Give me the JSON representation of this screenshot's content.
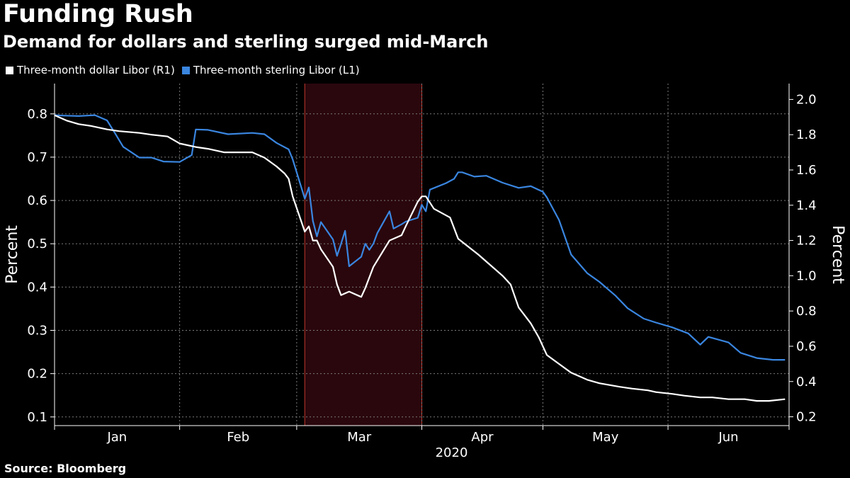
{
  "header": {
    "title": "Funding Rush",
    "subtitle": "Demand for dollars and sterling surged mid-March"
  },
  "legend": {
    "items": [
      {
        "label": "Three-month dollar Libor  (R1)",
        "color": "#ffffff"
      },
      {
        "label": "Three-month sterling Libor (L1)",
        "color": "#3a86e0"
      }
    ]
  },
  "source": "Source: Bloomberg",
  "colors": {
    "background": "#000000",
    "dollar_line": "#ffffff",
    "sterling_line": "#3a86e0",
    "highlight_fill": "#2a070d",
    "highlight_edge": "#c0392b",
    "grid": "#7a7a7a"
  },
  "chart_data": {
    "type": "line",
    "x_type": "date",
    "year_label": "2020",
    "month_labels": [
      "Jan",
      "Feb",
      "Mar",
      "Apr",
      "May",
      "Jun"
    ],
    "xlim": [
      "2019-12-31",
      "2020-06-30"
    ],
    "left_axis": {
      "label": "Percent",
      "ticks": [
        "0.1",
        "0.2",
        "0.3",
        "0.4",
        "0.5",
        "0.6",
        "0.7",
        "0.8"
      ],
      "ylim": [
        0.08,
        0.87
      ]
    },
    "right_axis": {
      "label": "Percent",
      "ticks": [
        "0.2",
        "0.4",
        "0.6",
        "0.8",
        "1.0",
        "1.2",
        "1.4",
        "1.6",
        "1.8",
        "2.0"
      ],
      "ylim": [
        0.15,
        2.09
      ]
    },
    "grid": true,
    "highlight": {
      "start": "2020-03-02",
      "end": "2020-03-31"
    },
    "series": [
      {
        "name": "Three-month sterling Libor (L1)",
        "axis": "left",
        "points": [
          [
            "2019-12-31",
            0.797
          ],
          [
            "2020-01-02",
            0.796
          ],
          [
            "2020-01-06",
            0.795
          ],
          [
            "2020-01-10",
            0.797
          ],
          [
            "2020-01-13",
            0.785
          ],
          [
            "2020-01-15",
            0.755
          ],
          [
            "2020-01-17",
            0.724
          ],
          [
            "2020-01-21",
            0.699
          ],
          [
            "2020-01-24",
            0.699
          ],
          [
            "2020-01-27",
            0.69
          ],
          [
            "2020-01-31",
            0.689
          ],
          [
            "2020-02-03",
            0.705
          ],
          [
            "2020-02-04",
            0.764
          ],
          [
            "2020-02-07",
            0.763
          ],
          [
            "2020-02-12",
            0.753
          ],
          [
            "2020-02-18",
            0.756
          ],
          [
            "2020-02-21",
            0.753
          ],
          [
            "2020-02-24",
            0.733
          ],
          [
            "2020-02-27",
            0.718
          ],
          [
            "2020-02-28",
            0.695
          ],
          [
            "2020-03-02",
            0.604
          ],
          [
            "2020-03-03",
            0.63
          ],
          [
            "2020-03-04",
            0.553
          ],
          [
            "2020-03-05",
            0.517
          ],
          [
            "2020-03-06",
            0.55
          ],
          [
            "2020-03-09",
            0.51
          ],
          [
            "2020-03-10",
            0.472
          ],
          [
            "2020-03-11",
            0.5
          ],
          [
            "2020-03-12",
            0.53
          ],
          [
            "2020-03-13",
            0.448
          ],
          [
            "2020-03-16",
            0.47
          ],
          [
            "2020-03-17",
            0.5
          ],
          [
            "2020-03-18",
            0.486
          ],
          [
            "2020-03-19",
            0.5
          ],
          [
            "2020-03-20",
            0.525
          ],
          [
            "2020-03-23",
            0.575
          ],
          [
            "2020-03-24",
            0.535
          ],
          [
            "2020-03-26",
            0.545
          ],
          [
            "2020-03-27",
            0.551
          ],
          [
            "2020-03-30",
            0.56
          ],
          [
            "2020-03-31",
            0.59
          ],
          [
            "2020-04-01",
            0.575
          ],
          [
            "2020-04-02",
            0.625
          ],
          [
            "2020-04-06",
            0.64
          ],
          [
            "2020-04-08",
            0.65
          ],
          [
            "2020-04-09",
            0.665
          ],
          [
            "2020-04-10",
            0.665
          ],
          [
            "2020-04-13",
            0.655
          ],
          [
            "2020-04-16",
            0.657
          ],
          [
            "2020-04-20",
            0.641
          ],
          [
            "2020-04-24",
            0.629
          ],
          [
            "2020-04-27",
            0.633
          ],
          [
            "2020-04-30",
            0.62
          ],
          [
            "2020-05-01",
            0.607
          ],
          [
            "2020-05-04",
            0.555
          ],
          [
            "2020-05-07",
            0.475
          ],
          [
            "2020-05-11",
            0.432
          ],
          [
            "2020-05-14",
            0.412
          ],
          [
            "2020-05-18",
            0.38
          ],
          [
            "2020-05-21",
            0.351
          ],
          [
            "2020-05-25",
            0.327
          ],
          [
            "2020-05-28",
            0.318
          ],
          [
            "2020-06-01",
            0.307
          ],
          [
            "2020-06-05",
            0.293
          ],
          [
            "2020-06-08",
            0.267
          ],
          [
            "2020-06-10",
            0.285
          ],
          [
            "2020-06-15",
            0.272
          ],
          [
            "2020-06-18",
            0.248
          ],
          [
            "2020-06-22",
            0.236
          ],
          [
            "2020-06-25",
            0.233
          ],
          [
            "2020-06-26",
            0.232
          ],
          [
            "2020-06-29",
            0.232
          ]
        ]
      },
      {
        "name": "Three-month dollar Libor  (R1)",
        "axis": "right",
        "points": [
          [
            "2019-12-31",
            1.91
          ],
          [
            "2020-01-03",
            1.88
          ],
          [
            "2020-01-06",
            1.86
          ],
          [
            "2020-01-09",
            1.85
          ],
          [
            "2020-01-13",
            1.83
          ],
          [
            "2020-01-16",
            1.82
          ],
          [
            "2020-01-21",
            1.81
          ],
          [
            "2020-01-24",
            1.8
          ],
          [
            "2020-01-28",
            1.79
          ],
          [
            "2020-01-31",
            1.75
          ],
          [
            "2020-02-04",
            1.73
          ],
          [
            "2020-02-07",
            1.72
          ],
          [
            "2020-02-11",
            1.7
          ],
          [
            "2020-02-14",
            1.7
          ],
          [
            "2020-02-18",
            1.7
          ],
          [
            "2020-02-21",
            1.67
          ],
          [
            "2020-02-24",
            1.62
          ],
          [
            "2020-02-25",
            1.6
          ],
          [
            "2020-02-26",
            1.58
          ],
          [
            "2020-02-27",
            1.55
          ],
          [
            "2020-02-28",
            1.45
          ],
          [
            "2020-03-02",
            1.25
          ],
          [
            "2020-03-03",
            1.28
          ],
          [
            "2020-03-04",
            1.2
          ],
          [
            "2020-03-05",
            1.2
          ],
          [
            "2020-03-06",
            1.15
          ],
          [
            "2020-03-09",
            1.05
          ],
          [
            "2020-03-10",
            0.95
          ],
          [
            "2020-03-11",
            0.89
          ],
          [
            "2020-03-13",
            0.91
          ],
          [
            "2020-03-16",
            0.88
          ],
          [
            "2020-03-17",
            0.93
          ],
          [
            "2020-03-19",
            1.05
          ],
          [
            "2020-03-23",
            1.2
          ],
          [
            "2020-03-26",
            1.23
          ],
          [
            "2020-03-27",
            1.28
          ],
          [
            "2020-03-30",
            1.42
          ],
          [
            "2020-03-31",
            1.45
          ],
          [
            "2020-04-01",
            1.45
          ],
          [
            "2020-04-03",
            1.38
          ],
          [
            "2020-04-07",
            1.33
          ],
          [
            "2020-04-09",
            1.21
          ],
          [
            "2020-04-14",
            1.12
          ],
          [
            "2020-04-16",
            1.08
          ],
          [
            "2020-04-20",
            1.0
          ],
          [
            "2020-04-22",
            0.95
          ],
          [
            "2020-04-24",
            0.82
          ],
          [
            "2020-04-27",
            0.73
          ],
          [
            "2020-04-29",
            0.65
          ],
          [
            "2020-05-01",
            0.55
          ],
          [
            "2020-05-04",
            0.5
          ],
          [
            "2020-05-07",
            0.45
          ],
          [
            "2020-05-11",
            0.41
          ],
          [
            "2020-05-14",
            0.39
          ],
          [
            "2020-05-19",
            0.37
          ],
          [
            "2020-05-22",
            0.36
          ],
          [
            "2020-05-26",
            0.35
          ],
          [
            "2020-05-28",
            0.34
          ],
          [
            "2020-06-01",
            0.33
          ],
          [
            "2020-06-04",
            0.32
          ],
          [
            "2020-06-08",
            0.31
          ],
          [
            "2020-06-11",
            0.31
          ],
          [
            "2020-06-15",
            0.3
          ],
          [
            "2020-06-19",
            0.3
          ],
          [
            "2020-06-22",
            0.29
          ],
          [
            "2020-06-25",
            0.29
          ],
          [
            "2020-06-29",
            0.3
          ]
        ]
      }
    ]
  }
}
